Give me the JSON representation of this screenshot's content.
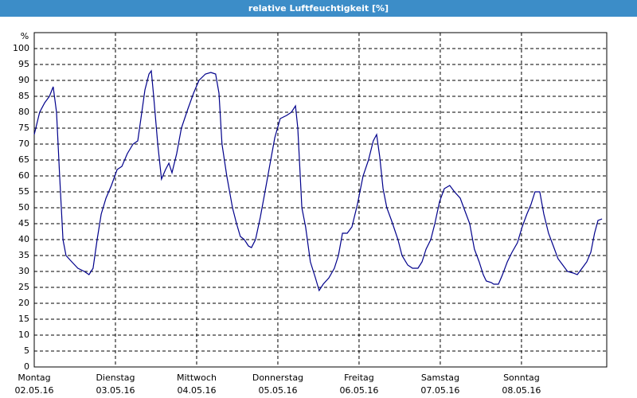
{
  "chart_data": {
    "type": "line",
    "title": "relative Luftfeuchtigkeit [%]",
    "y_label": "%",
    "xlim": [
      0,
      169.2
    ],
    "ylim": [
      0,
      105
    ],
    "yticks": [
      0,
      5,
      10,
      15,
      20,
      25,
      30,
      35,
      40,
      45,
      50,
      55,
      60,
      65,
      70,
      75,
      80,
      85,
      90,
      95,
      100
    ],
    "xticks": [
      {
        "value": 0,
        "label": "Montag",
        "date": "02.05.16"
      },
      {
        "value": 24,
        "label": "Dienstag",
        "date": "03.05.16"
      },
      {
        "value": 48,
        "label": "Mittwoch",
        "date": "04.05.16"
      },
      {
        "value": 72,
        "label": "Donnerstag",
        "date": "05.05.16"
      },
      {
        "value": 96,
        "label": "Freitag",
        "date": "06.05.16"
      },
      {
        "value": 120,
        "label": "Samstag",
        "date": "07.05.16"
      },
      {
        "value": 144,
        "label": "Sonntag",
        "date": "08.05.16"
      }
    ],
    "grid": true,
    "series": [
      {
        "color": "#00008b",
        "x": [
          0,
          1.6,
          3.1,
          4.5,
          5.6,
          6.6,
          7.5,
          8.5,
          9.4,
          11.1,
          12.9,
          14.8,
          16.2,
          17.4,
          18.6,
          19.8,
          21.2,
          22.8,
          24.5,
          25.9,
          27.5,
          29.2,
          30.6,
          31.8,
          32.7,
          33.9,
          34.6,
          35.3,
          36.5,
          37.6,
          38.8,
          39.8,
          40.7,
          42.1,
          43.5,
          45.4,
          47.1,
          48.7,
          50.6,
          52.2,
          53.6,
          54.6,
          55.5,
          56.9,
          58.6,
          59.8,
          60.9,
          62.1,
          63.3,
          64.2,
          65.4,
          66.8,
          68.2,
          69.9,
          71.1,
          72.7,
          74.6,
          76,
          77.2,
          77.9,
          79.1,
          80.2,
          81.6,
          83.1,
          84.2,
          85.4,
          87.1,
          88.7,
          89.9,
          91.1,
          92.5,
          93.9,
          95.5,
          97.2,
          98.8,
          100.2,
          101.2,
          102.1,
          103.1,
          104.2,
          105.6,
          107.5,
          108.7,
          110.4,
          111.8,
          113.4,
          114.6,
          115.8,
          117.2,
          118.4,
          119.8,
          121.2,
          122.8,
          124.2,
          125.9,
          127.3,
          128.7,
          130.1,
          131.5,
          132.7,
          133.6,
          135.1,
          135.8,
          137.2,
          138.4,
          139.8,
          141.2,
          142.8,
          144.2,
          145.6,
          146.8,
          148,
          149.4,
          150.6,
          152,
          153.4,
          154.8,
          156.2,
          157.6,
          159.3,
          160.5,
          161.9,
          163.3,
          164.5,
          165.6,
          166.6,
          167.8
        ],
        "values": [
          73,
          80,
          83,
          85,
          88,
          80,
          60,
          40,
          35,
          33,
          31,
          30,
          29,
          31,
          40,
          48,
          53,
          57,
          62,
          63,
          67,
          70,
          71,
          80,
          87,
          92,
          93,
          85,
          70,
          59,
          62,
          64,
          61,
          67,
          75,
          81,
          86,
          90,
          92,
          92.5,
          92,
          86,
          70,
          60,
          50,
          45,
          41,
          40,
          38,
          37.5,
          40,
          47,
          55,
          65,
          72,
          78,
          79,
          80,
          82,
          75,
          50,
          44,
          33,
          28,
          24,
          26,
          28,
          31,
          35,
          42,
          42,
          44,
          51,
          60,
          65,
          71,
          73,
          66,
          56,
          50,
          46,
          40,
          35,
          32,
          31,
          31,
          33,
          37,
          40,
          45,
          52,
          56,
          57,
          55,
          53,
          49,
          45,
          37,
          33,
          29,
          27,
          26.5,
          26,
          26,
          29,
          33,
          36,
          39,
          44,
          48,
          51,
          55,
          55,
          48,
          42,
          38,
          34,
          32,
          30,
          29.5,
          29,
          31,
          33,
          36,
          42,
          46,
          46.5
        ]
      }
    ]
  }
}
